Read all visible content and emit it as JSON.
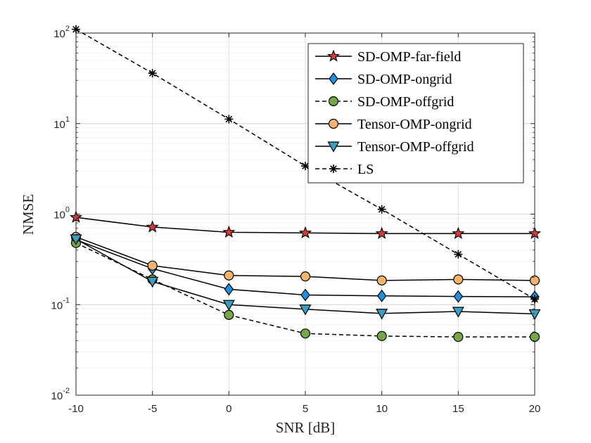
{
  "chart_data": {
    "type": "line",
    "title": "",
    "xlabel": "SNR [dB]",
    "ylabel": "NMSE",
    "x": [
      -10,
      -5,
      0,
      5,
      10,
      15,
      20
    ],
    "xlim": [
      -10,
      20
    ],
    "ylim": [
      0.01,
      100
    ],
    "yscale": "log",
    "x_ticks": [
      "-10",
      "-5",
      "0",
      "5",
      "10",
      "15",
      "20"
    ],
    "y_ticks": [
      {
        "base": "10",
        "exp": "-2"
      },
      {
        "base": "10",
        "exp": "-1"
      },
      {
        "base": "10",
        "exp": "0"
      },
      {
        "base": "10",
        "exp": "1"
      },
      {
        "base": "10",
        "exp": "2"
      }
    ],
    "grid": true,
    "legend_position": "top-right",
    "series": [
      {
        "name": "SD-OMP-far-field",
        "marker": "star",
        "line": "solid",
        "color": "#d63a3a",
        "values": [
          0.92,
          0.72,
          0.63,
          0.62,
          0.61,
          0.61,
          0.61
        ]
      },
      {
        "name": "SD-OMP-ongrid",
        "marker": "diamond",
        "line": "solid",
        "color": "#1f8fe0",
        "values": [
          0.52,
          0.25,
          0.148,
          0.128,
          0.125,
          0.123,
          0.122
        ]
      },
      {
        "name": "SD-OMP-offgrid",
        "marker": "circle",
        "line": "dashed",
        "color": "#74a64a",
        "values": [
          0.48,
          0.19,
          0.077,
          0.048,
          0.045,
          0.044,
          0.044
        ]
      },
      {
        "name": "Tensor-OMP-ongrid",
        "marker": "circle",
        "line": "solid",
        "color": "#f5b36b",
        "values": [
          0.56,
          0.27,
          0.21,
          0.205,
          0.185,
          0.19,
          0.185
        ]
      },
      {
        "name": "Tensor-OMP-offgrid",
        "marker": "triangle-down",
        "line": "solid",
        "color": "#3a9fc4",
        "values": [
          0.53,
          0.18,
          0.1,
          0.089,
          0.08,
          0.084,
          0.079
        ]
      },
      {
        "name": "LS",
        "marker": "asterisk",
        "line": "dashed",
        "color": "#000000",
        "values": [
          110,
          36,
          11.2,
          3.4,
          1.13,
          0.36,
          0.115
        ]
      }
    ]
  }
}
